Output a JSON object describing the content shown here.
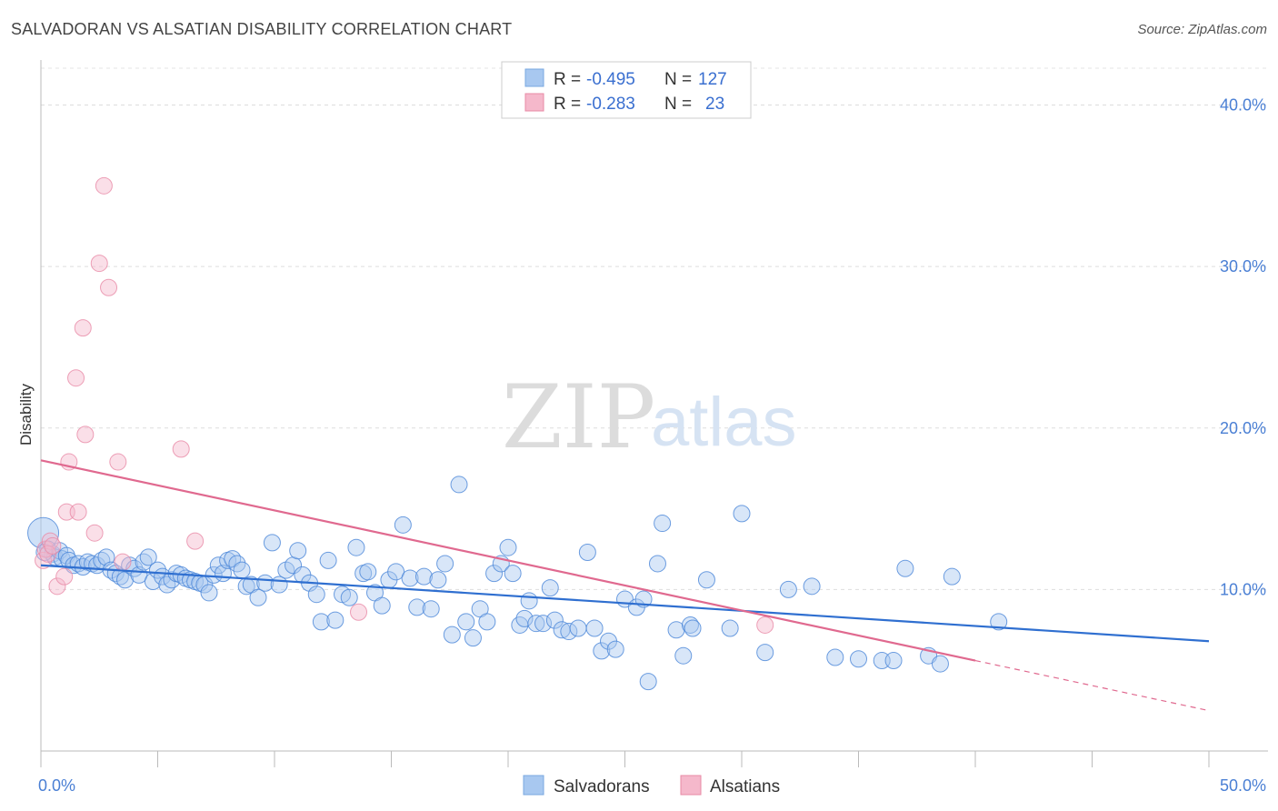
{
  "title": "SALVADORAN VS ALSATIAN DISABILITY CORRELATION CHART",
  "source": "Source: ZipAtlas.com",
  "watermark": {
    "zip": "ZIP",
    "atlas": "atlas"
  },
  "legend": {
    "rows": [
      {
        "r_label": "R =",
        "r_value": "-0.495",
        "n_label": "N =",
        "n_value": "127",
        "color": "#a8c8f0"
      },
      {
        "r_label": "R =",
        "r_value": "-0.283",
        "n_label": "N =",
        "n_value": "23",
        "color": "#f5b8cb"
      }
    ]
  },
  "bottom_legend": [
    {
      "label": "Salvadorans",
      "color": "#a8c8f0"
    },
    {
      "label": "Alsatians",
      "color": "#f5b8cb"
    }
  ],
  "chart_data": {
    "type": "scatter",
    "xlabel": "",
    "ylabel": "Disability",
    "xlim": [
      0,
      50
    ],
    "ylim": [
      0,
      42
    ],
    "x_tick_labels": [
      {
        "v": 0,
        "t": "0.0%"
      },
      {
        "v": 50,
        "t": "50.0%"
      }
    ],
    "y_tick_labels": [
      {
        "v": 10,
        "t": "10.0%"
      },
      {
        "v": 20,
        "t": "20.0%"
      },
      {
        "v": 30,
        "t": "30.0%"
      },
      {
        "v": 40,
        "t": "40.0%"
      }
    ],
    "grid": true,
    "series": [
      {
        "name": "Salvadorans",
        "color": "#4a86d8",
        "fill": "#a8c8f0",
        "trend": {
          "x1": 0,
          "y1": 11.5,
          "x2": 50,
          "y2": 6.8,
          "color": "#2f6fd0"
        },
        "points": [
          [
            0.1,
            13.5
          ],
          [
            0.3,
            12.5
          ],
          [
            0.5,
            12.2
          ],
          [
            0.6,
            12.0
          ],
          [
            0.8,
            12.4
          ],
          [
            0.9,
            11.9
          ],
          [
            1.1,
            12.1
          ],
          [
            1.2,
            11.8
          ],
          [
            1.4,
            11.5
          ],
          [
            1.6,
            11.6
          ],
          [
            1.8,
            11.4
          ],
          [
            2.0,
            11.7
          ],
          [
            2.2,
            11.6
          ],
          [
            2.4,
            11.5
          ],
          [
            2.6,
            11.8
          ],
          [
            2.8,
            12.0
          ],
          [
            3.0,
            11.2
          ],
          [
            3.2,
            11.0
          ],
          [
            3.4,
            10.8
          ],
          [
            3.6,
            10.6
          ],
          [
            3.8,
            11.5
          ],
          [
            4.0,
            11.3
          ],
          [
            4.2,
            10.9
          ],
          [
            4.4,
            11.7
          ],
          [
            4.6,
            12.0
          ],
          [
            4.8,
            10.5
          ],
          [
            5.0,
            11.2
          ],
          [
            5.2,
            10.8
          ],
          [
            5.4,
            10.3
          ],
          [
            5.6,
            10.6
          ],
          [
            5.8,
            11.0
          ],
          [
            6.0,
            10.9
          ],
          [
            6.2,
            10.7
          ],
          [
            6.4,
            10.6
          ],
          [
            6.6,
            10.5
          ],
          [
            6.8,
            10.4
          ],
          [
            7.0,
            10.3
          ],
          [
            7.2,
            9.8
          ],
          [
            7.4,
            10.9
          ],
          [
            7.6,
            11.5
          ],
          [
            7.8,
            11.0
          ],
          [
            8.0,
            11.8
          ],
          [
            8.2,
            11.9
          ],
          [
            8.4,
            11.6
          ],
          [
            8.6,
            11.2
          ],
          [
            8.8,
            10.2
          ],
          [
            9.0,
            10.3
          ],
          [
            9.3,
            9.5
          ],
          [
            9.6,
            10.4
          ],
          [
            9.9,
            12.9
          ],
          [
            10.2,
            10.3
          ],
          [
            10.5,
            11.2
          ],
          [
            10.8,
            11.5
          ],
          [
            11.0,
            12.4
          ],
          [
            11.2,
            10.9
          ],
          [
            11.5,
            10.4
          ],
          [
            11.8,
            9.7
          ],
          [
            12.0,
            8.0
          ],
          [
            12.3,
            11.8
          ],
          [
            12.6,
            8.1
          ],
          [
            12.9,
            9.7
          ],
          [
            13.2,
            9.5
          ],
          [
            13.5,
            12.6
          ],
          [
            13.8,
            11.0
          ],
          [
            14.0,
            11.1
          ],
          [
            14.3,
            9.8
          ],
          [
            14.6,
            9.0
          ],
          [
            14.9,
            10.6
          ],
          [
            15.2,
            11.1
          ],
          [
            15.5,
            14.0
          ],
          [
            15.8,
            10.7
          ],
          [
            16.1,
            8.9
          ],
          [
            16.4,
            10.8
          ],
          [
            16.7,
            8.8
          ],
          [
            17.0,
            10.6
          ],
          [
            17.3,
            11.6
          ],
          [
            17.6,
            7.2
          ],
          [
            17.9,
            16.5
          ],
          [
            18.2,
            8.0
          ],
          [
            18.5,
            7.0
          ],
          [
            18.8,
            8.8
          ],
          [
            19.1,
            8.0
          ],
          [
            19.4,
            11.0
          ],
          [
            19.7,
            11.6
          ],
          [
            20.0,
            12.6
          ],
          [
            20.2,
            11.0
          ],
          [
            20.5,
            7.8
          ],
          [
            20.7,
            8.2
          ],
          [
            20.9,
            9.3
          ],
          [
            21.2,
            7.9
          ],
          [
            21.5,
            7.9
          ],
          [
            21.8,
            10.1
          ],
          [
            22.0,
            8.1
          ],
          [
            22.3,
            7.5
          ],
          [
            22.6,
            7.4
          ],
          [
            23.0,
            7.6
          ],
          [
            23.4,
            12.3
          ],
          [
            23.7,
            7.6
          ],
          [
            24.0,
            6.2
          ],
          [
            24.3,
            6.8
          ],
          [
            24.6,
            6.3
          ],
          [
            25.0,
            9.4
          ],
          [
            25.5,
            8.9
          ],
          [
            25.8,
            9.4
          ],
          [
            26.0,
            4.3
          ],
          [
            26.4,
            11.6
          ],
          [
            26.6,
            14.1
          ],
          [
            27.2,
            7.5
          ],
          [
            27.5,
            5.9
          ],
          [
            27.8,
            7.8
          ],
          [
            27.9,
            7.6
          ],
          [
            28.5,
            10.6
          ],
          [
            29.5,
            7.6
          ],
          [
            30.0,
            14.7
          ],
          [
            31.0,
            6.1
          ],
          [
            32.0,
            10.0
          ],
          [
            33.0,
            10.2
          ],
          [
            34.0,
            5.8
          ],
          [
            35.0,
            5.7
          ],
          [
            36.0,
            5.6
          ],
          [
            36.5,
            5.6
          ],
          [
            37.0,
            11.3
          ],
          [
            38.0,
            5.9
          ],
          [
            38.5,
            5.4
          ],
          [
            39.0,
            10.8
          ],
          [
            41.0,
            8.0
          ],
          [
            0.15,
            12.3
          ]
        ]
      },
      {
        "name": "Alsatians",
        "color": "#e88aa6",
        "fill": "#f5b8cb",
        "trend": {
          "x1": 0,
          "y1": 18.0,
          "x2": 40,
          "y2": 5.6,
          "color": "#e0698f",
          "dash_to": {
            "x": 50,
            "y": 2.5
          }
        },
        "points": [
          [
            0.1,
            11.8
          ],
          [
            0.2,
            12.5
          ],
          [
            0.4,
            13.0
          ],
          [
            0.7,
            10.2
          ],
          [
            1.0,
            10.8
          ],
          [
            1.1,
            14.8
          ],
          [
            1.2,
            17.9
          ],
          [
            1.5,
            23.1
          ],
          [
            1.6,
            14.8
          ],
          [
            1.8,
            26.2
          ],
          [
            1.9,
            19.6
          ],
          [
            2.3,
            13.5
          ],
          [
            2.5,
            30.2
          ],
          [
            2.7,
            35.0
          ],
          [
            2.9,
            28.7
          ],
          [
            3.3,
            17.9
          ],
          [
            3.5,
            11.7
          ],
          [
            6.0,
            18.7
          ],
          [
            6.6,
            13.0
          ],
          [
            13.6,
            8.6
          ],
          [
            31.0,
            7.8
          ],
          [
            0.3,
            12.2
          ],
          [
            0.5,
            12.7
          ]
        ]
      }
    ]
  }
}
